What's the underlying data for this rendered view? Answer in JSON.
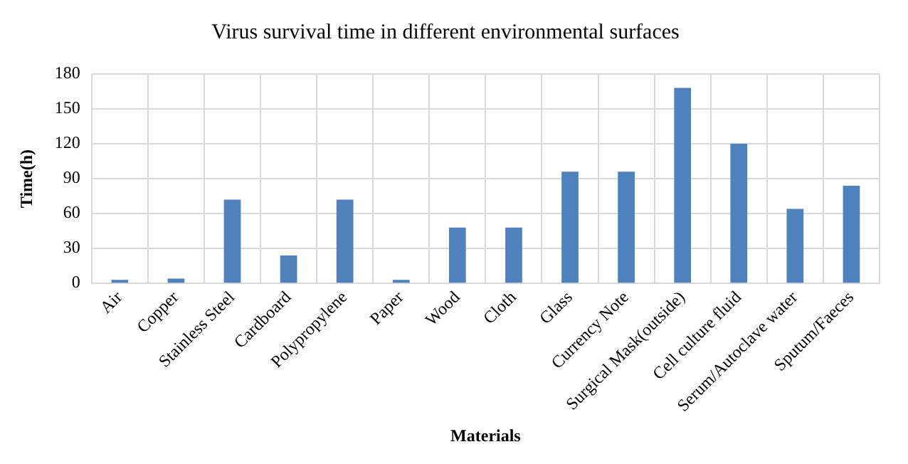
{
  "chart_data": {
    "type": "bar",
    "title": "Virus survival time in different environmental surfaces",
    "xlabel": "Materials",
    "ylabel": "Time(h)",
    "categories": [
      "Air",
      "Copper",
      "Stainless Steel",
      "Cardboard",
      "Polypropylene",
      "Paper",
      "Wood",
      "Cloth",
      "Glass",
      "Currency Note",
      "Surgical Mask(outside)",
      "Cell culture fluid",
      "Serum/Autoclave water",
      "Sputum/Faeces"
    ],
    "values": [
      3,
      4,
      72,
      24,
      72,
      3,
      48,
      48,
      96,
      96,
      168,
      120,
      64,
      84
    ],
    "color": "#4f81bd",
    "ylim": [
      0,
      180
    ],
    "yticks": [
      0,
      30,
      60,
      90,
      120,
      150,
      180
    ],
    "grid": true
  }
}
